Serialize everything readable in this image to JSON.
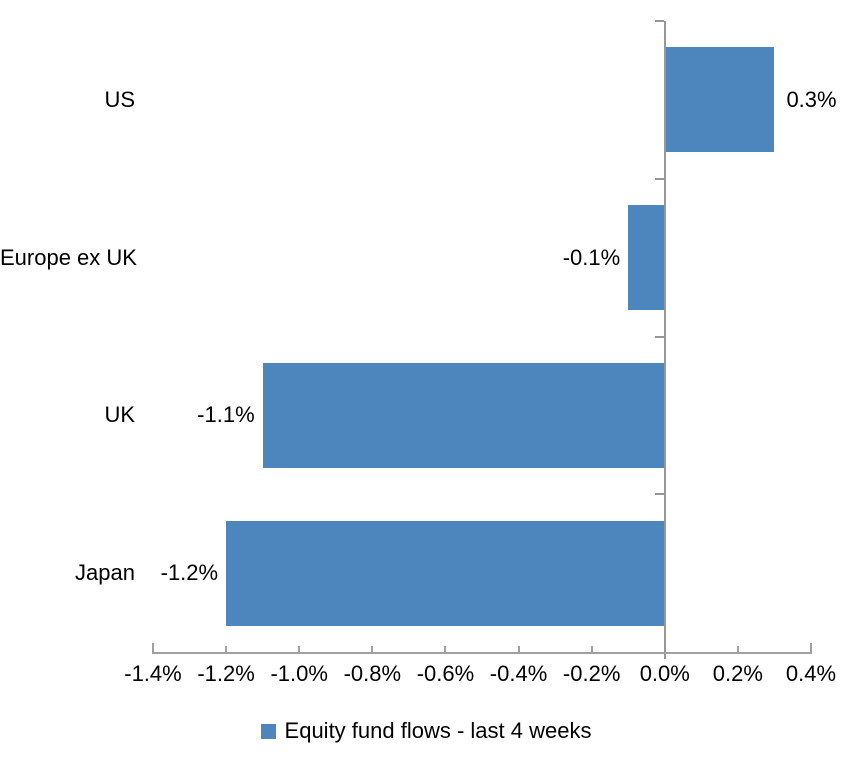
{
  "chart_data": {
    "type": "bar",
    "orientation": "horizontal",
    "categories": [
      "US",
      "Europe ex UK",
      "UK",
      "Japan"
    ],
    "series": [
      {
        "name": "Equity fund flows - last 4 weeks",
        "values": [
          0.3,
          -0.1,
          -1.1,
          -1.2
        ],
        "labels": [
          "0.3%",
          "-0.1%",
          "-1.1%",
          "-1.2%"
        ]
      }
    ],
    "value_unit": "%",
    "xlim": [
      -1.4,
      0.4
    ],
    "x_ticks": [
      -1.4,
      -1.2,
      -1.0,
      -0.8,
      -0.6,
      -0.4,
      -0.2,
      0.0,
      0.2,
      0.4
    ],
    "x_tick_labels": [
      "-1.4%",
      "-1.2%",
      "-1.0%",
      "-0.8%",
      "-0.6%",
      "-0.4%",
      "-0.2%",
      "0.0%",
      "0.2%",
      "0.4%"
    ],
    "grid": false,
    "data_label_position": "outside-end",
    "legend_position": "bottom",
    "colors": {
      "bar": "#4D86BD",
      "axis": "#A0A0A0",
      "zero_line": "#969696",
      "text": "#000000",
      "background": "#FFFFFF"
    }
  }
}
